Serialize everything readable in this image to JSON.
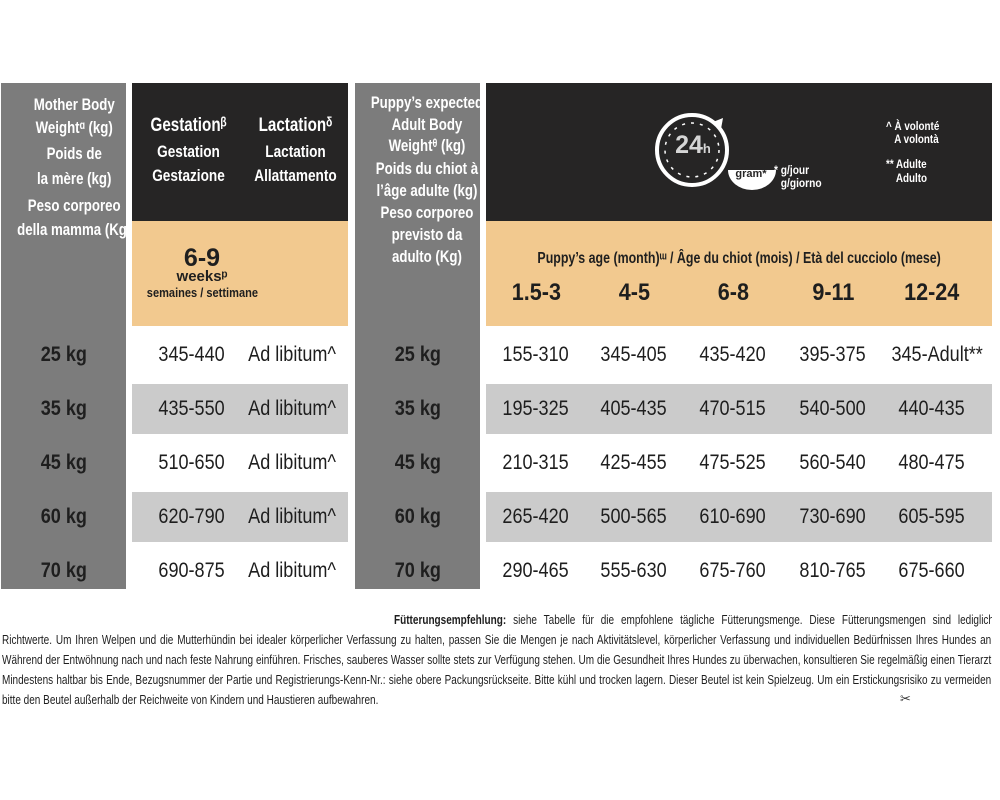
{
  "header": {
    "mother_weight": [
      "Mother Body",
      "Weightᵅ (kg)",
      "Poids de",
      "la mère (kg)",
      "Peso corporeo",
      "della mamma (Kg)"
    ],
    "gestation": [
      "Gestationᵝ",
      "Gestation",
      "Gestazione"
    ],
    "lactation": [
      "Lactationᵟ",
      "Lactation",
      "Allattamento"
    ],
    "weeks_value": "6-9",
    "weeks_label": "weeksᵖ",
    "weeks_sub": "semaines / settimane",
    "adult_weight": [
      "Puppy’s expected",
      "Adult Body",
      "Weightᶿ (kg)",
      "Poids du chiot à",
      "l’âge adulte (kg)",
      "Peso corporeo",
      "previsto da",
      "adulto (Kg)"
    ],
    "clock_label": "24",
    "clock_sub": "h",
    "bowl_label": "gram*",
    "gram_note": [
      "* g/jour",
      "g/giorno"
    ],
    "notes": [
      "^ À volonté",
      "A volontà",
      "** Adulte",
      "Adulto"
    ],
    "age_title": "Puppy’s age (month)ᵚ  /  Âge du chiot (mois)  /  Età del cucciolo (mese)",
    "age_ranges": [
      "1.5-3",
      "4-5",
      "6-8",
      "9-11",
      "12-24"
    ]
  },
  "rows": [
    {
      "mother": "25 kg",
      "gestation": "345-440",
      "lactation": "Ad libitum^",
      "adult": "25 kg",
      "values": [
        "155-310",
        "345-405",
        "435-420",
        "395-375",
        "345-Adult**"
      ]
    },
    {
      "mother": "35 kg",
      "gestation": "435-550",
      "lactation": "Ad libitum^",
      "adult": "35 kg",
      "values": [
        "195-325",
        "405-435",
        "470-515",
        "540-500",
        "440-435"
      ]
    },
    {
      "mother": "45 kg",
      "gestation": "510-650",
      "lactation": "Ad libitum^",
      "adult": "45 kg",
      "values": [
        "210-315",
        "425-455",
        "475-525",
        "560-540",
        "480-475"
      ]
    },
    {
      "mother": "60 kg",
      "gestation": "620-790",
      "lactation": "Ad libitum^",
      "adult": "60 kg",
      "values": [
        "265-420",
        "500-565",
        "610-690",
        "730-690",
        "605-595"
      ]
    },
    {
      "mother": "70 kg",
      "gestation": "690-875",
      "lactation": "Ad libitum^",
      "adult": "70 kg",
      "values": [
        "290-465",
        "555-630",
        "675-760",
        "810-765",
        "675-660"
      ]
    }
  ],
  "footer": {
    "bold_lead": "Fütterungsempfehlung:",
    "text": " siehe Tabelle für die empfohlene tägliche Fütterungsmenge. Diese Fütterungsmengen sind lediglich Richtwerte. Um Ihren Welpen und die Mutterhündin bei idealer körperlicher Verfassung zu halten, passen Sie die Mengen je nach Aktivitätslevel, körperlicher Verfassung und individuellen Bedürfnissen Ihres Hundes an. Während der Entwöhnung nach und nach feste Nahrung einführen. Frisches, sauberes Wasser sollte stets zur Verfügung stehen. Um die Gesundheit Ihres Hundes zu überwachen, konsultieren Sie regelmäßig einen Tierarzt. Mindestens haltbar bis Ende, Bezugsnummer der Partie und Registrierungs-Kenn-Nr.: siehe obere Packungsrückseite. Bitte kühl und trocken lagern. Dieser Beutel ist kein Spielzeug. Um ein Erstickungsrisiko zu vermeiden, bitte den Beutel außerhalb der Reichweite von Kindern und Haustieren aufbewahren.",
    "scissor_icon": "scissors-icon"
  }
}
